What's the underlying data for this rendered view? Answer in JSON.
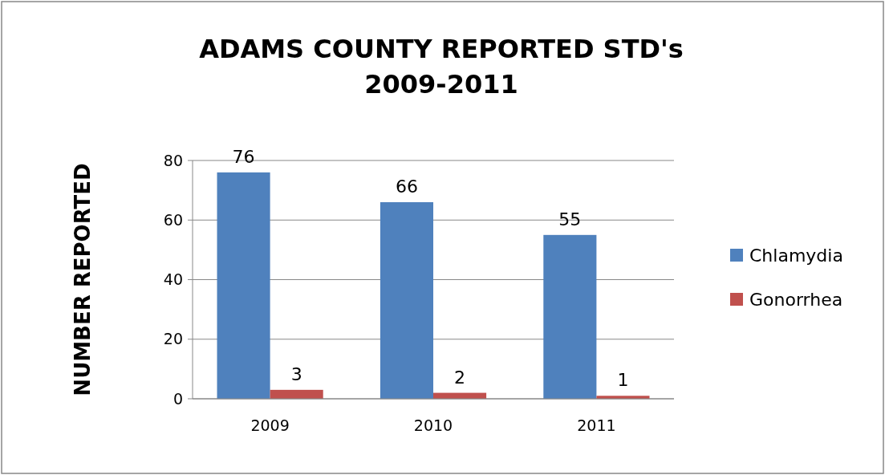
{
  "chart_data": {
    "type": "bar",
    "title": "ADAMS COUNTY REPORTED STD's\n2009-2011",
    "ylabel": "NUMBER REPORTED",
    "categories": [
      "2009",
      "2010",
      "2011"
    ],
    "series": [
      {
        "name": "Chlamydia",
        "color": "#4f81bd",
        "values": [
          76,
          66,
          55
        ]
      },
      {
        "name": "Gonorrhea",
        "color": "#c0504d",
        "values": [
          3,
          2,
          1
        ]
      }
    ],
    "ylim": [
      0,
      80
    ],
    "yticks": [
      0,
      20,
      40,
      60,
      80
    ],
    "grid": "y",
    "legend": "right",
    "data_labels": true
  }
}
